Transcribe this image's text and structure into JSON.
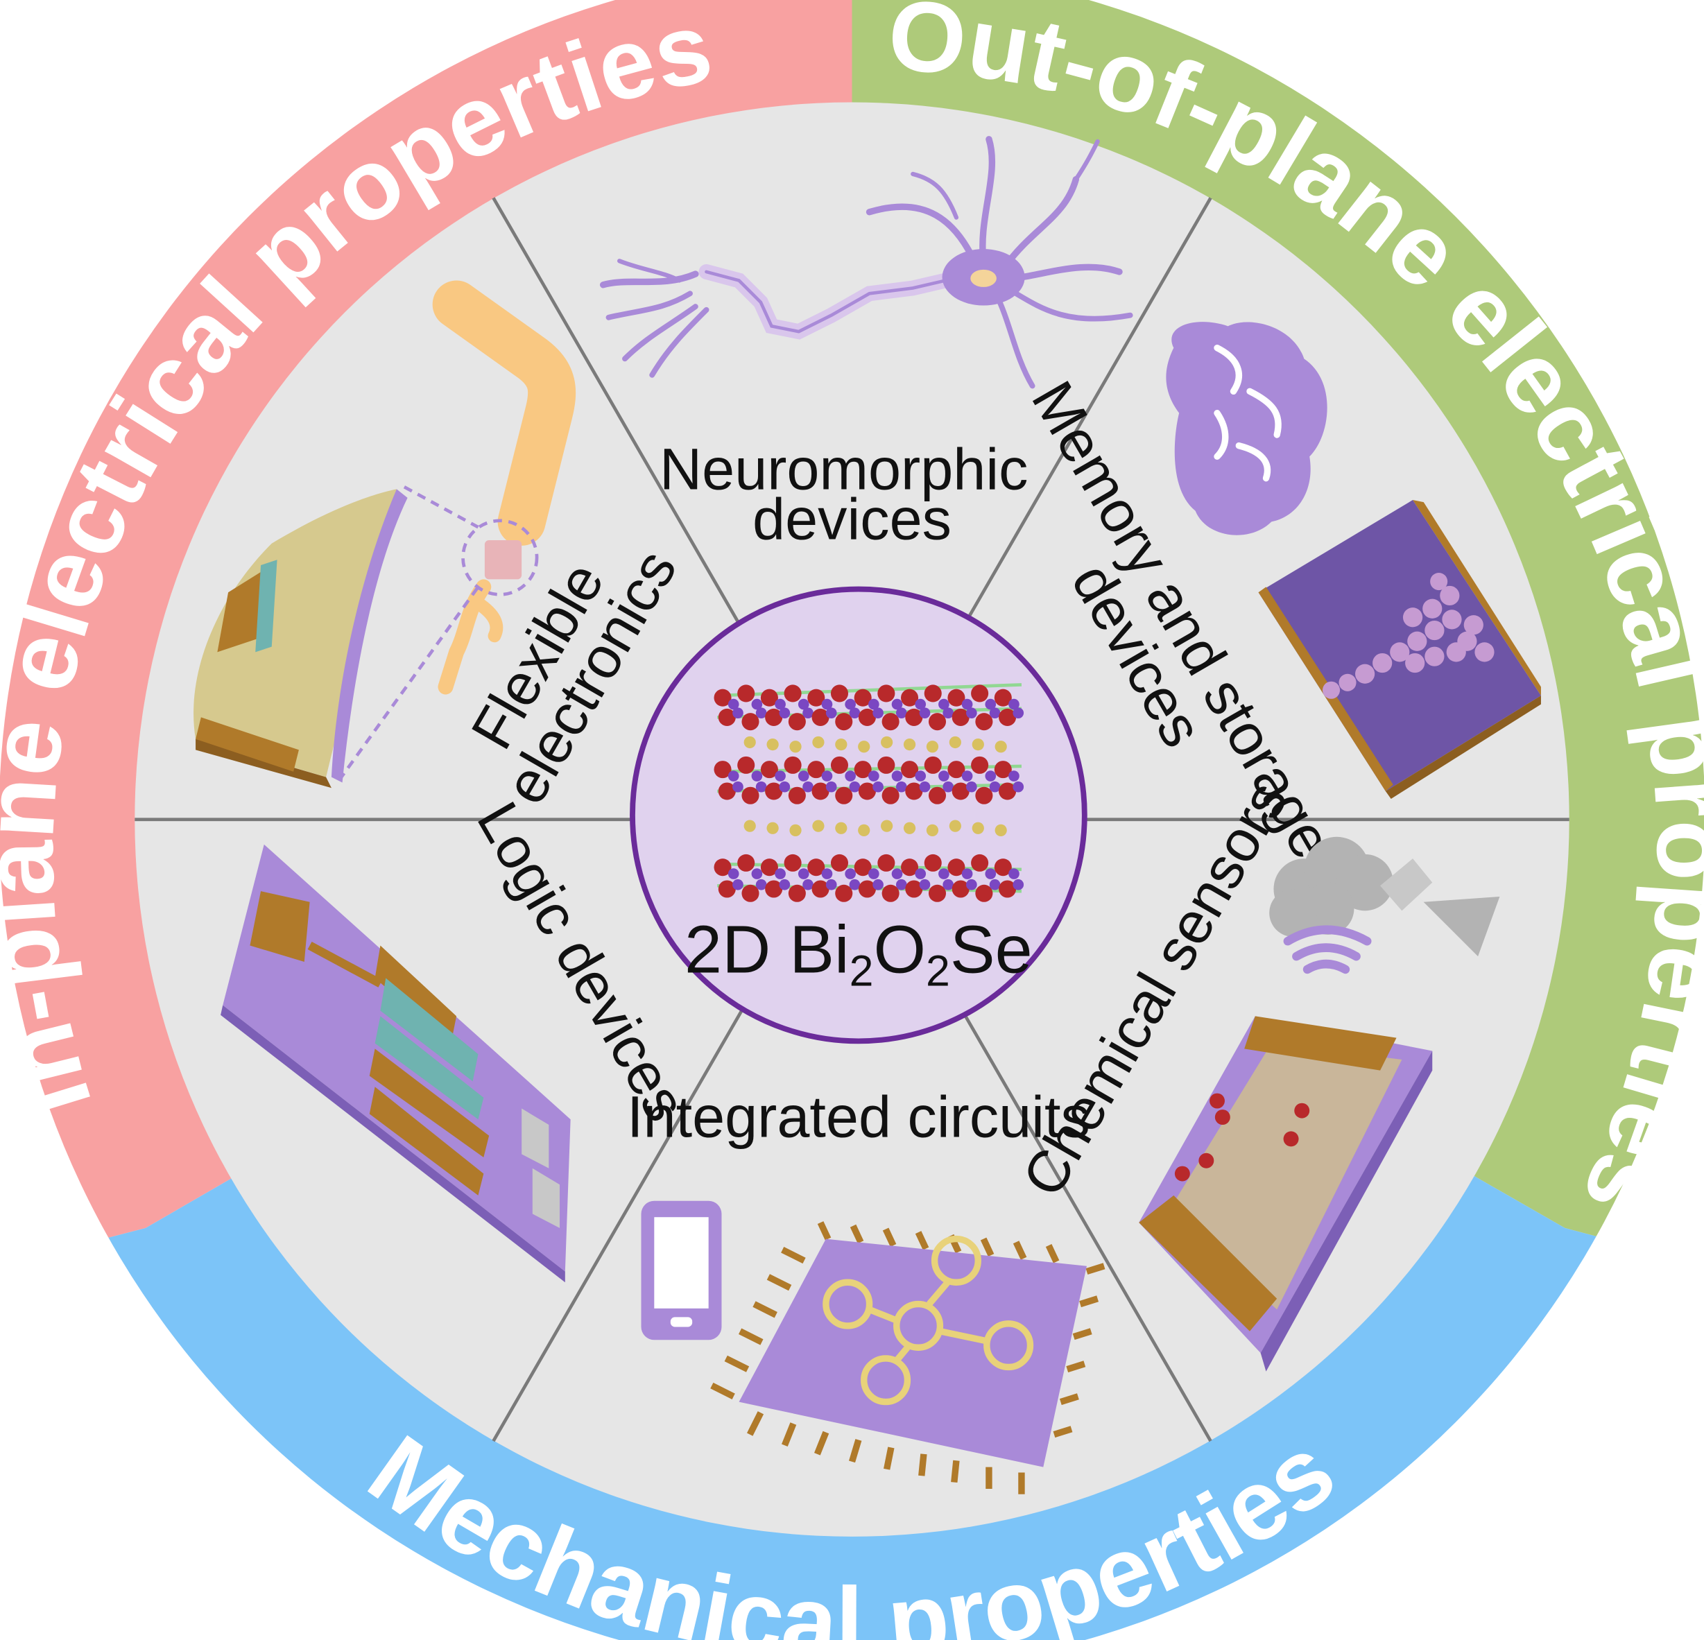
{
  "ring_labels": {
    "in_plane": "In-plane electrical properties",
    "out_of_plane": "Out-of-plane electrical properties",
    "mechanical": "Mechanical  properties"
  },
  "segments": {
    "neuromorphic": [
      "Neuromorphic",
      "devices"
    ],
    "memory": [
      "Memory and storage",
      "devices"
    ],
    "chemical": "Chemical sensors",
    "integrated": "Integrated circuits",
    "logic": "Logic devices",
    "flexible": [
      "Flexible",
      "electronics"
    ]
  },
  "center": {
    "label_prefix": "2D Bi",
    "sub1": "2",
    "mid": "O",
    "sub2": "2",
    "suffix": "Se"
  },
  "colors": {
    "in_plane_ring": "#F8A1A1",
    "out_of_plane_ring": "#AECA7A",
    "mechanical_ring": "#7CC4F8",
    "disc": "#E6E6E6",
    "divider": "#7A7A7A",
    "center_fill": "#E0D2EE",
    "center_stroke": "#6A2B9A",
    "device_purple": "#A98AD8",
    "gold": "#B07A2A",
    "oxygen_red": "#B8292B",
    "bismuth_purple": "#7A47C2",
    "selenium_yellow": "#D8C060"
  },
  "icons": [
    "neuron-icon",
    "brain-icon",
    "memory-box-icon",
    "cloud-icon",
    "horn-icon",
    "wifi-icon",
    "sensor-chip-icon",
    "phone-icon",
    "ic-chip-icon",
    "logic-device-icon",
    "robot-arm-icon",
    "flexible-device-icon",
    "crystal-structure-icon"
  ]
}
